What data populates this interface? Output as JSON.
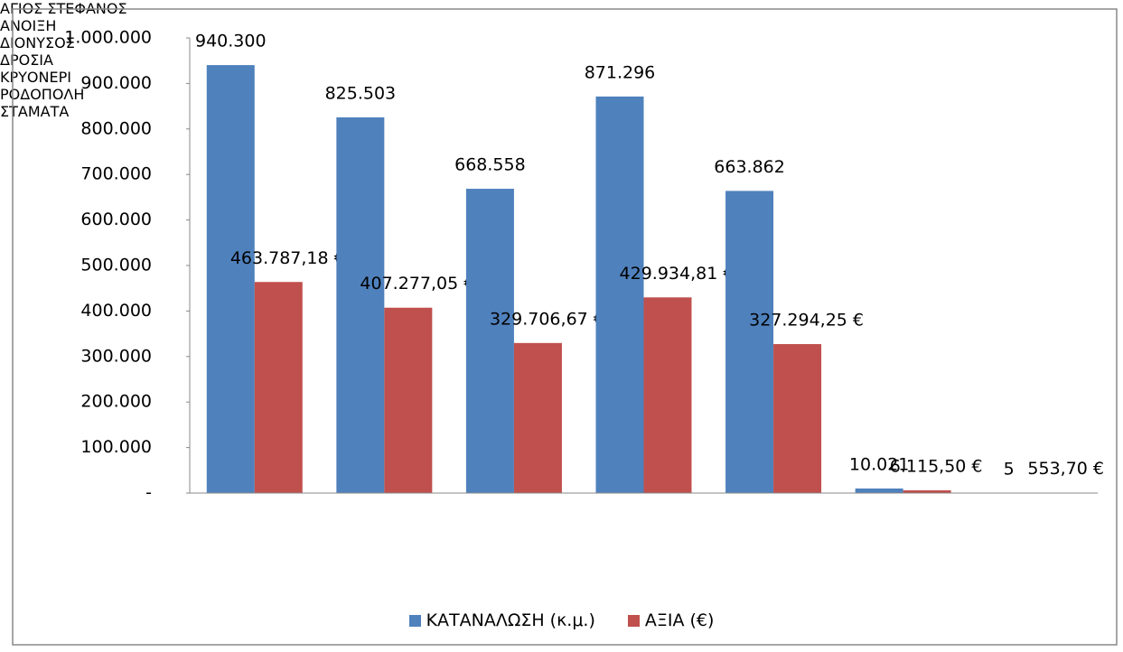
{
  "chart_data": {
    "type": "bar",
    "categories": [
      "ΑΓΙΟΣ ΣΤΕΦΑΝΟΣ",
      "ΑΝΟΙΞΗ",
      "ΔΙΟΝΥΣΟΣ",
      "ΔΡΟΣΙΑ",
      "ΚΡΥΟΝΕΡΙ",
      "ΡΟΔΟΠΟΛΗ",
      "ΣΤΑΜΑΤΑ"
    ],
    "series": [
      {
        "name": "ΚΑΤΑΝΑΛΩΣΗ (κ.μ.)",
        "color": "#4f81bd",
        "values": [
          940300,
          825503,
          668558,
          871296,
          663862,
          10021,
          5
        ],
        "value_labels": [
          "940.300",
          "825.503",
          "668.558",
          "871.296",
          "663.862",
          "10.021",
          "5"
        ]
      },
      {
        "name": "ΑΞΙΑ (€)",
        "color": "#c0504d",
        "values": [
          463787.18,
          407277.05,
          329706.67,
          429934.81,
          327294.25,
          6115.5,
          553.7
        ],
        "value_labels": [
          "463.787,18 €",
          "407.277,05 €",
          "329.706,67 €",
          "429.934,81 €",
          "327.294,25 €",
          "6.115,50 €",
          "553,70 €"
        ]
      }
    ],
    "ylim": [
      0,
      1000000
    ],
    "yticks": [
      {
        "value": 0,
        "label": "-"
      },
      {
        "value": 100000,
        "label": "100.000"
      },
      {
        "value": 200000,
        "label": "200.000"
      },
      {
        "value": 300000,
        "label": "300.000"
      },
      {
        "value": 400000,
        "label": "400.000"
      },
      {
        "value": 500000,
        "label": "500.000"
      },
      {
        "value": 600000,
        "label": "600.000"
      },
      {
        "value": 700000,
        "label": "700.000"
      },
      {
        "value": 800000,
        "label": "800.000"
      },
      {
        "value": 900000,
        "label": "900.000"
      },
      {
        "value": 1000000,
        "label": "1.000.000"
      }
    ],
    "legend": "bottom"
  }
}
